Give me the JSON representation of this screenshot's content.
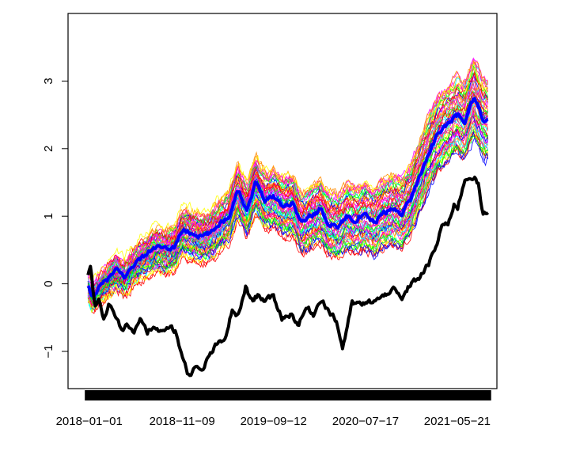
{
  "chart_data": {
    "type": "line",
    "title": "",
    "xlabel": "",
    "ylabel": "",
    "x_tick_labels": [
      "2018−01−01",
      "2018−11−09",
      "2019−09−12",
      "2020−07−17",
      "2021−05−21"
    ],
    "x_tick_dates": [
      "2018-01-01",
      "2018-11-09",
      "2019-09-12",
      "2020-07-17",
      "2021-05-21"
    ],
    "y_ticks": [
      -1,
      0,
      1,
      2,
      3
    ],
    "y_tick_labels": [
      "−1",
      "0",
      "1",
      "2",
      "3"
    ],
    "xlim": [
      "2017-10-22",
      "2021-10-01"
    ],
    "ylim": [
      -1.55,
      4.0
    ],
    "grid": false,
    "legend": "none",
    "ensemble_colors": [
      "#ff0000",
      "#ff1493",
      "#ff00ff",
      "#00ff00",
      "#00ffff",
      "#0000ff",
      "#ffff00",
      "#ff8c00"
    ],
    "ensemble_note_count": 60,
    "series": [
      {
        "role": "ensemble-mean",
        "color": "#0000ff",
        "x": [
          "2017-12-28",
          "2018-01-10",
          "2018-02-05",
          "2018-03-01",
          "2018-04-01",
          "2018-05-01",
          "2018-06-01",
          "2018-07-15",
          "2018-08-15",
          "2018-09-15",
          "2018-10-15",
          "2018-11-09",
          "2018-12-10",
          "2019-01-15",
          "2019-02-15",
          "2019-03-15",
          "2019-04-15",
          "2019-05-15",
          "2019-06-15",
          "2019-07-15",
          "2019-08-15",
          "2019-09-12",
          "2019-10-15",
          "2019-11-15",
          "2019-12-15",
          "2020-01-15",
          "2020-02-15",
          "2020-03-15",
          "2020-04-15",
          "2020-05-15",
          "2020-06-15",
          "2020-07-17",
          "2020-08-15",
          "2020-09-15",
          "2020-10-15",
          "2020-11-15",
          "2020-12-15",
          "2021-01-15",
          "2021-02-15",
          "2021-03-15",
          "2021-04-15",
          "2021-05-21",
          "2021-06-15",
          "2021-07-15",
          "2021-08-15",
          "2021-09-01"
        ],
        "y": [
          -0.05,
          -0.2,
          -0.05,
          0.05,
          0.2,
          0.1,
          0.3,
          0.45,
          0.55,
          0.5,
          0.55,
          0.8,
          0.75,
          0.7,
          0.75,
          0.9,
          1.0,
          1.4,
          1.1,
          1.5,
          1.25,
          1.3,
          1.15,
          1.2,
          0.9,
          1.0,
          1.1,
          0.9,
          0.85,
          1.0,
          0.95,
          1.0,
          0.9,
          1.05,
          1.1,
          1.05,
          1.25,
          1.6,
          1.95,
          2.2,
          2.35,
          2.5,
          2.4,
          2.75,
          2.45,
          2.4
        ]
      },
      {
        "role": "observed",
        "color": "#000000",
        "x": [
          "2017-12-28",
          "2018-01-05",
          "2018-01-20",
          "2018-02-05",
          "2018-02-20",
          "2018-03-10",
          "2018-04-01",
          "2018-04-20",
          "2018-05-10",
          "2018-06-01",
          "2018-06-20",
          "2018-07-15",
          "2018-08-05",
          "2018-08-25",
          "2018-09-10",
          "2018-10-01",
          "2018-10-20",
          "2018-11-09",
          "2018-12-01",
          "2018-12-20",
          "2019-01-15",
          "2019-02-10",
          "2019-03-05",
          "2019-04-01",
          "2019-04-25",
          "2019-05-15",
          "2019-06-10",
          "2019-07-01",
          "2019-07-25",
          "2019-08-15",
          "2019-09-12",
          "2019-10-10",
          "2019-11-10",
          "2019-12-05",
          "2020-01-01",
          "2020-01-25",
          "2020-02-20",
          "2020-03-15",
          "2020-04-10",
          "2020-05-01",
          "2020-06-01",
          "2020-07-01",
          "2020-07-17",
          "2020-08-15",
          "2020-09-15",
          "2020-10-15",
          "2020-11-15",
          "2020-12-15",
          "2021-01-15",
          "2021-02-15",
          "2021-03-15",
          "2021-04-01",
          "2021-04-20",
          "2021-05-10",
          "2021-05-21",
          "2021-06-15",
          "2021-07-15",
          "2021-08-01",
          "2021-08-15",
          "2021-09-01"
        ],
        "y": [
          0.1,
          0.28,
          -0.35,
          -0.25,
          -0.55,
          -0.3,
          -0.5,
          -0.7,
          -0.6,
          -0.7,
          -0.5,
          -0.7,
          -0.65,
          -0.7,
          -0.7,
          -0.65,
          -0.7,
          -1.1,
          -1.35,
          -1.25,
          -1.3,
          -1.05,
          -0.9,
          -0.85,
          -0.4,
          -0.5,
          -0.05,
          -0.25,
          -0.15,
          -0.25,
          -0.2,
          -0.5,
          -0.45,
          -0.6,
          -0.35,
          -0.45,
          -0.2,
          -0.4,
          -0.55,
          -0.95,
          -0.3,
          -0.3,
          -0.3,
          -0.25,
          -0.2,
          -0.05,
          -0.25,
          0.0,
          0.1,
          0.3,
          0.6,
          0.9,
          0.85,
          1.2,
          1.1,
          1.55,
          1.6,
          1.45,
          1.0,
          1.05
        ]
      }
    ]
  }
}
